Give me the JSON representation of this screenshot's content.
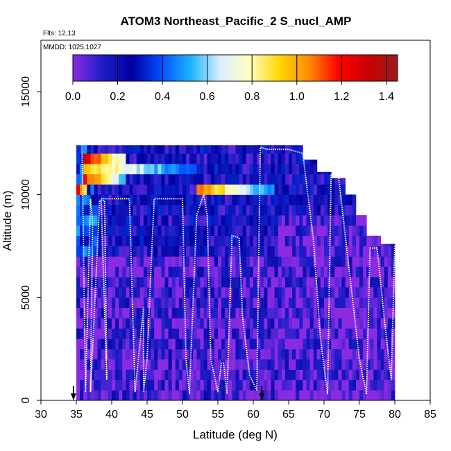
{
  "chart_data": {
    "type": "heatmap",
    "title": "ATOM3 Northeast_Pacific_2 S_nucl_AMP",
    "flights_label": "Flts: 12,13",
    "dates_label": "MMDD: 1025,1027",
    "xlabel": "Latitude (deg N)",
    "ylabel": "Altitude (m)",
    "xlim": [
      30,
      85
    ],
    "ylim": [
      0,
      17500
    ],
    "x_ticks": [
      30,
      35,
      40,
      45,
      50,
      55,
      60,
      65,
      70,
      75,
      80,
      85
    ],
    "y_ticks": [
      0,
      5000,
      10000,
      15000
    ],
    "colorbar": {
      "range": [
        0,
        1.45
      ],
      "ticks": [
        0.0,
        0.2,
        0.4,
        0.6,
        0.8,
        1.0,
        1.2,
        1.4
      ],
      "tick_labels": [
        "0.0",
        "0.2",
        "0.4",
        "0.6",
        "0.8",
        "1.0",
        "1.2",
        "1.4"
      ],
      "colors": [
        "#8a2be2",
        "#1e1ec8",
        "#0000a0",
        "#0050ff",
        "#1eb4ff",
        "#dcf0ff",
        "#ffffc0",
        "#ffd700",
        "#ff8c00",
        "#ff0000",
        "#c80000",
        "#9b1b1b"
      ]
    },
    "grid": false,
    "column_extents": [
      {
        "lat": 35.0,
        "top": 12400
      },
      {
        "lat": 40.0,
        "top": 12400
      },
      {
        "lat": 45.0,
        "top": 12400
      },
      {
        "lat": 50.0,
        "top": 12400
      },
      {
        "lat": 55.0,
        "top": 12400
      },
      {
        "lat": 60.0,
        "top": 12400
      },
      {
        "lat": 64.5,
        "top": 12400
      },
      {
        "lat": 67.0,
        "top": 11700
      },
      {
        "lat": 69.0,
        "top": 11100
      },
      {
        "lat": 71.0,
        "top": 10800
      },
      {
        "lat": 73.0,
        "top": 10000
      },
      {
        "lat": 74.5,
        "top": 9000
      },
      {
        "lat": 76.0,
        "top": 8000
      },
      {
        "lat": 78.0,
        "top": 7600
      },
      {
        "lat": 80.0,
        "top": 7400
      }
    ],
    "high_value_bands": [
      {
        "lat_start": 35.8,
        "lat_end": 42.0,
        "alt_low": 11500,
        "alt_high": 12000,
        "peak": 1.3
      },
      {
        "lat_start": 35.8,
        "lat_end": 52.0,
        "alt_low": 11000,
        "alt_high": 11500,
        "peak": 1.0
      },
      {
        "lat_start": 35.8,
        "lat_end": 42.0,
        "alt_low": 10500,
        "alt_high": 11000,
        "peak": 1.2
      },
      {
        "lat_start": 52.0,
        "lat_end": 63.0,
        "alt_low": 9900,
        "alt_high": 10500,
        "peak": 1.1
      },
      {
        "lat_start": 34.5,
        "lat_end": 36.5,
        "alt_low": 9900,
        "alt_high": 10500,
        "peak": 1.45
      }
    ],
    "flight_tracks": [
      {
        "lat": [
          35.8,
          36.3,
          36.3,
          37.0,
          37.3,
          37.0,
          38.3,
          39.0,
          39.3,
          38.5,
          38.8,
          42.5,
          43.3,
          44.5,
          44.5,
          45.0,
          45.5,
          46.0,
          50.0,
          50.5,
          51.0,
          51.0,
          52.0,
          53.0,
          53.5,
          54.0,
          55.0,
          55.5,
          55.8,
          56.3,
          57.0,
          58.0,
          58.5,
          59.5,
          60.5,
          61.0,
          61.0,
          62.0,
          63.0,
          65.0,
          67.0,
          68.5,
          69.5,
          70.5,
          71.0,
          72.0,
          73.0,
          74.0,
          75.0,
          76.0,
          76.5,
          77.5,
          78.5,
          79.5,
          80.0
        ],
        "alt": [
          12400,
          400,
          400,
          9800,
          8700,
          400,
          9700,
          9700,
          1000,
          9800,
          9800,
          9800,
          400,
          4500,
          400,
          2000,
          6000,
          9800,
          9800,
          2000,
          300,
          600,
          9000,
          10000,
          9000,
          2000,
          400,
          1800,
          1800,
          300,
          8000,
          7900,
          4000,
          1200,
          500,
          12300,
          12300,
          12200,
          12200,
          12200,
          12000,
          7800,
          3000,
          300,
          11000,
          11000,
          8000,
          5000,
          2000,
          300,
          7400,
          7400,
          4000,
          1000,
          7500
        ]
      }
    ],
    "arrows": [
      {
        "lat": 34.6,
        "label": ""
      },
      {
        "lat": 61.2,
        "label": ""
      }
    ]
  }
}
